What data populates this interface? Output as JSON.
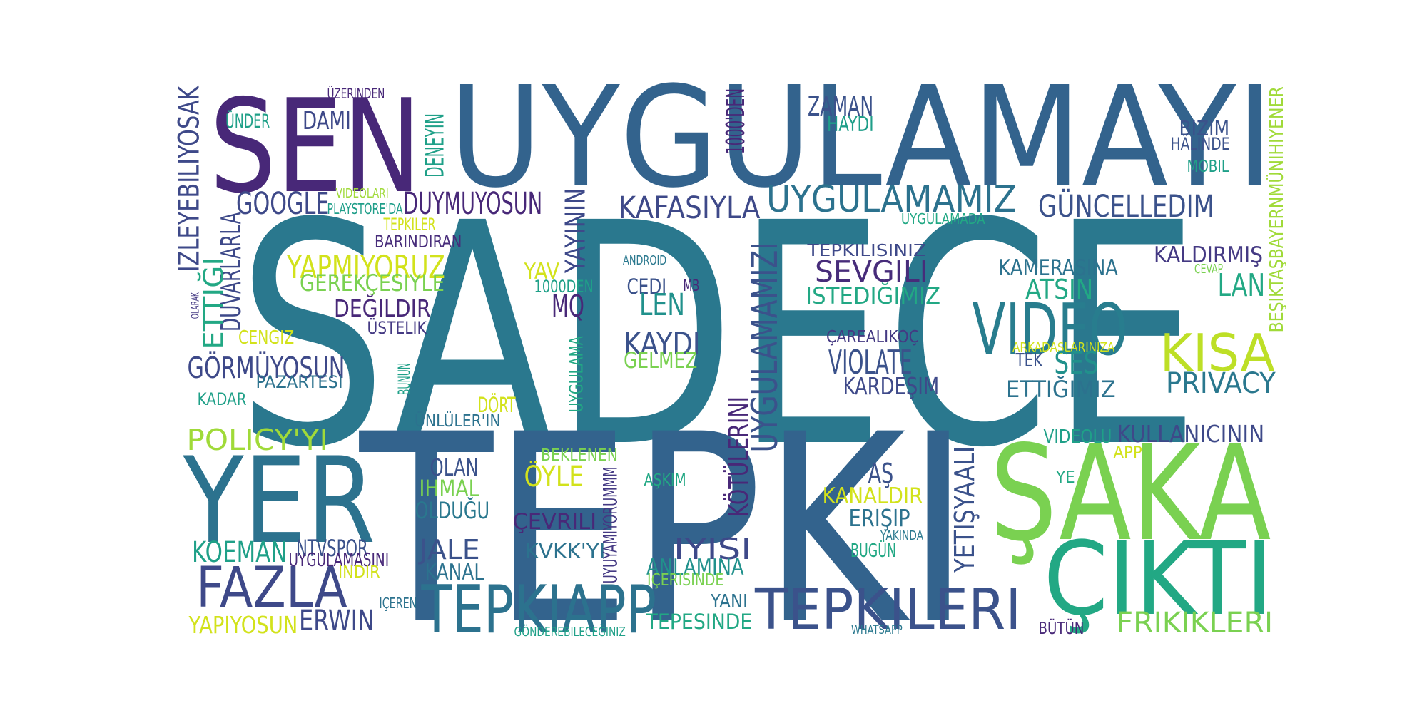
{
  "word_cloud": {
    "words": [
      {
        "text": "SADECE",
        "color": "#2a788e"
      },
      {
        "text": "TEPKI",
        "color": "#33638d"
      },
      {
        "text": "UYGULAMAYI",
        "color": "#33638d"
      },
      {
        "text": "SEN",
        "color": "#482878"
      },
      {
        "text": "ŞAKA",
        "color": "#7ad151"
      },
      {
        "text": "YER",
        "color": "#2c728e"
      },
      {
        "text": "ÇIKTI",
        "color": "#22a884"
      },
      {
        "text": "VIDEO",
        "color": "#287d8e"
      },
      {
        "text": "TEPKIAPP",
        "color": "#2c728e"
      },
      {
        "text": "TEPKILERI",
        "color": "#3b528b"
      },
      {
        "text": "FAZLA",
        "color": "#3e4989"
      },
      {
        "text": "KISA",
        "color": "#bddf26"
      },
      {
        "text": "UYGULAMAMIZ",
        "color": "#2c728e"
      },
      {
        "text": "UYGULAMAMIZI",
        "color": "#3b528b"
      },
      {
        "text": "GOOGLE",
        "color": "#3e4989"
      },
      {
        "text": "DUYMUYOSUN",
        "color": "#482878"
      },
      {
        "text": "KAFASIYLA",
        "color": "#3e4989"
      },
      {
        "text": "GÜNCELLEDIM",
        "color": "#3b528b"
      },
      {
        "text": "YAPMIYORUZ",
        "color": "#d2e21b"
      },
      {
        "text": "SEVGILI",
        "color": "#472c7a"
      },
      {
        "text": "GÖRMÜYOSUN",
        "color": "#3e4989"
      },
      {
        "text": "POLICY'YI",
        "color": "#a0da39"
      },
      {
        "text": "KOEMAN",
        "color": "#1fa088"
      },
      {
        "text": "ZAMAN",
        "color": "#3b528b"
      },
      {
        "text": "DAMI",
        "color": "#3e4989"
      },
      {
        "text": "HAYDI",
        "color": "#1f9e89"
      },
      {
        "text": "ÜNDER",
        "color": "#1fa088"
      },
      {
        "text": "ÜZERINDEN",
        "color": "#482878"
      },
      {
        "text": "DENEYIN",
        "color": "#1fa088"
      },
      {
        "text": "1000'DEN",
        "color": "#482878"
      },
      {
        "text": "VIDEOLARI",
        "color": "#a0da39"
      },
      {
        "text": "PLAYSTORE'DA",
        "color": "#1f9e89"
      },
      {
        "text": "TEPKILER",
        "color": "#d2e21b"
      },
      {
        "text": "BARINDIRAN",
        "color": "#472c7a"
      },
      {
        "text": "GEREKÇESIYLE",
        "color": "#7ad151"
      },
      {
        "text": "DEĞILDIR",
        "color": "#482878"
      },
      {
        "text": "ÜSTELIK",
        "color": "#443983"
      },
      {
        "text": "CENGIZ",
        "color": "#d2e21b"
      },
      {
        "text": "PAZARTESI",
        "color": "#2c728e"
      },
      {
        "text": "KADAR",
        "color": "#1fa088"
      },
      {
        "text": "IZLEYEBILIYOSAK",
        "color": "#3e4989"
      },
      {
        "text": "DUVARLARLA",
        "color": "#3e4989"
      },
      {
        "text": "ETTIĞI",
        "color": "#22a884"
      },
      {
        "text": "OLARAK",
        "color": "#443983"
      },
      {
        "text": "BUNUN",
        "color": "#1fa088"
      },
      {
        "text": "YAYININ",
        "color": "#3e4989"
      },
      {
        "text": "YAV",
        "color": "#d2e21b"
      },
      {
        "text": "1000DEN",
        "color": "#1fa088"
      },
      {
        "text": "MQ",
        "color": "#482878"
      },
      {
        "text": "ANDROID",
        "color": "#2a788e"
      },
      {
        "text": "CEDI",
        "color": "#3b528b"
      },
      {
        "text": "MB",
        "color": "#482878"
      },
      {
        "text": "LEN",
        "color": "#21918c"
      },
      {
        "text": "KAYDI",
        "color": "#3b528b"
      },
      {
        "text": "GELMEZ",
        "color": "#7ad151"
      },
      {
        "text": "UYGULAMA",
        "color": "#22a884"
      },
      {
        "text": "DÖRT",
        "color": "#d2e21b"
      },
      {
        "text": "ÜNLÜLER'IN",
        "color": "#2c728e"
      },
      {
        "text": "OLAN",
        "color": "#3b528b"
      },
      {
        "text": "IHMAL",
        "color": "#7ad151"
      },
      {
        "text": "OLDUĞU",
        "color": "#2a788e"
      },
      {
        "text": "JALE",
        "color": "#3b528b"
      },
      {
        "text": "KANAL",
        "color": "#2c728e"
      },
      {
        "text": "BEKLENEN",
        "color": "#7ad151"
      },
      {
        "text": "ÖYLE",
        "color": "#d2e21b"
      },
      {
        "text": "ÇEVRILI",
        "color": "#482878"
      },
      {
        "text": "KVKK'YI",
        "color": "#2c728e"
      },
      {
        "text": "UYUYAMIYORUMMM",
        "color": "#443983"
      },
      {
        "text": "AŞKIM",
        "color": "#22a884"
      },
      {
        "text": "KÖTÜLERINI",
        "color": "#482878"
      },
      {
        "text": "IYISI",
        "color": "#3e4989"
      },
      {
        "text": "ANLAMINA",
        "color": "#21918c"
      },
      {
        "text": "IÇERISINDE",
        "color": "#7ad151"
      },
      {
        "text": "YANI",
        "color": "#2c728e"
      },
      {
        "text": "TEPESINDE",
        "color": "#22a884"
      },
      {
        "text": "GÖNDEREBILECEĞINIZ",
        "color": "#1fa088"
      },
      {
        "text": "ERWIN",
        "color": "#3e4989"
      },
      {
        "text": "YAPIYOSUN",
        "color": "#d2e21b"
      },
      {
        "text": "NTVSPOR",
        "color": "#3b528b"
      },
      {
        "text": "UYGULAMASINI",
        "color": "#482878"
      },
      {
        "text": "INDIR",
        "color": "#d2e21b"
      },
      {
        "text": "IÇEREN",
        "color": "#2c728e"
      },
      {
        "text": "TEPKILISINIZ",
        "color": "#3e4989"
      },
      {
        "text": "ISTEDIĞIMIZ",
        "color": "#22a884"
      },
      {
        "text": "ÇAREALIKOÇ",
        "color": "#443983"
      },
      {
        "text": "VIOLATE",
        "color": "#3b528b"
      },
      {
        "text": "KARDEŞIM",
        "color": "#3e4989"
      },
      {
        "text": "AŞ",
        "color": "#3b528b"
      },
      {
        "text": "KANALDIR",
        "color": "#d2e21b"
      },
      {
        "text": "ERIŞIP",
        "color": "#2c728e"
      },
      {
        "text": "YAKINDA",
        "color": "#2a788e"
      },
      {
        "text": "BUGÜN",
        "color": "#22a884"
      },
      {
        "text": "WHATSAPP",
        "color": "#2a788e"
      },
      {
        "text": "YETIŞYAALI",
        "color": "#3b528b"
      },
      {
        "text": "UYGULAMADA",
        "color": "#22a884"
      },
      {
        "text": "KAMERASINA",
        "color": "#2c728e"
      },
      {
        "text": "ATSIN",
        "color": "#22a884"
      },
      {
        "text": "ARKADAŞLARINIZA",
        "color": "#d2e21b"
      },
      {
        "text": "TEK",
        "color": "#3b528b"
      },
      {
        "text": "SES",
        "color": "#21918c"
      },
      {
        "text": "ETTIĞIMIZ",
        "color": "#2c728e"
      },
      {
        "text": "KALDIRMIŞ",
        "color": "#443983"
      },
      {
        "text": "CEVAP",
        "color": "#7ad151"
      },
      {
        "text": "LAN",
        "color": "#22a884"
      },
      {
        "text": "PRIVACY",
        "color": "#2a788e"
      },
      {
        "text": "KULLANICININ",
        "color": "#3e4989"
      },
      {
        "text": "VIDEOLU",
        "color": "#1fa088"
      },
      {
        "text": "APP",
        "color": "#d2e21b"
      },
      {
        "text": "YE",
        "color": "#22a884"
      },
      {
        "text": "FRIKIKLERI",
        "color": "#7ad151"
      },
      {
        "text": "BÜTÜN",
        "color": "#482878"
      },
      {
        "text": "BIZIM",
        "color": "#3b528b"
      },
      {
        "text": "HÂLINDE",
        "color": "#3b528b"
      },
      {
        "text": "MOBIL",
        "color": "#1fa088"
      },
      {
        "text": "BEŞIKTAŞBAYERNMÜNIHIYENER",
        "color": "#a0da39"
      }
    ]
  }
}
